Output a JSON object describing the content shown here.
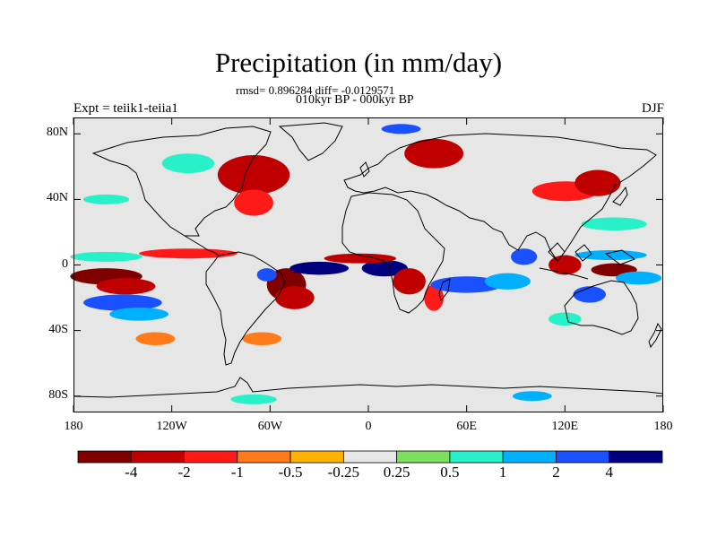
{
  "title": "Precipitation (in mm/day)",
  "stats": "rmsd= 0.896284 diff= -0.0129571",
  "period": "010kyr BP - 000kyr BP",
  "experiment": "Expt = teiik1-teiia1",
  "season": "DJF",
  "map": {
    "projection": "cylindrical-equidistant",
    "lon_range": [
      -180,
      180
    ],
    "lat_range": [
      -90,
      90
    ],
    "background_color": "#e6e6e6",
    "coastline_color": "#000000",
    "lat_ticks": [
      {
        "label": "80N",
        "lat": 80
      },
      {
        "label": "40N",
        "lat": 40
      },
      {
        "label": "0",
        "lat": 0
      },
      {
        "label": "40S",
        "lat": -40
      },
      {
        "label": "80S",
        "lat": -80
      }
    ],
    "lon_ticks": [
      {
        "label": "180",
        "lon": -180
      },
      {
        "label": "120W",
        "lon": -120
      },
      {
        "label": "60W",
        "lon": -60
      },
      {
        "label": "0",
        "lon": 0
      },
      {
        "label": "60E",
        "lon": 60
      },
      {
        "label": "120E",
        "lon": 120
      },
      {
        "label": "180",
        "lon": 180
      }
    ],
    "anomaly_field": [
      {
        "lon": -160,
        "lat": -7,
        "rx": 22,
        "ry": 5,
        "level": -4
      },
      {
        "lon": -148,
        "lat": -13,
        "rx": 18,
        "ry": 5,
        "level": -2
      },
      {
        "lon": -150,
        "lat": -23,
        "rx": 24,
        "ry": 5,
        "level": 2
      },
      {
        "lon": -140,
        "lat": -30,
        "rx": 18,
        "ry": 4,
        "level": 1
      },
      {
        "lon": -160,
        "lat": 5,
        "rx": 22,
        "ry": 3,
        "level": 0.5
      },
      {
        "lon": -110,
        "lat": 7,
        "rx": 30,
        "ry": 3,
        "level": -1
      },
      {
        "lon": -50,
        "lat": -12,
        "rx": 12,
        "ry": 10,
        "level": -4
      },
      {
        "lon": -45,
        "lat": -20,
        "rx": 12,
        "ry": 7,
        "level": -2
      },
      {
        "lon": -62,
        "lat": -6,
        "rx": 6,
        "ry": 4,
        "level": 2
      },
      {
        "lon": -30,
        "lat": -2,
        "rx": 18,
        "ry": 4,
        "level": 4
      },
      {
        "lon": 10,
        "lat": -2,
        "rx": 14,
        "ry": 5,
        "level": 4
      },
      {
        "lon": -5,
        "lat": 4,
        "rx": 22,
        "ry": 3,
        "level": -2
      },
      {
        "lon": 25,
        "lat": -10,
        "rx": 10,
        "ry": 8,
        "level": -2
      },
      {
        "lon": 40,
        "lat": -20,
        "rx": 6,
        "ry": 8,
        "level": -1
      },
      {
        "lon": 60,
        "lat": -12,
        "rx": 22,
        "ry": 5,
        "level": 2
      },
      {
        "lon": 85,
        "lat": -10,
        "rx": 14,
        "ry": 5,
        "level": 1
      },
      {
        "lon": 95,
        "lat": 5,
        "rx": 8,
        "ry": 5,
        "level": 2
      },
      {
        "lon": 120,
        "lat": 0,
        "rx": 10,
        "ry": 6,
        "level": -2
      },
      {
        "lon": 150,
        "lat": -3,
        "rx": 14,
        "ry": 4,
        "level": -4
      },
      {
        "lon": 148,
        "lat": 6,
        "rx": 22,
        "ry": 3,
        "level": 1
      },
      {
        "lon": 135,
        "lat": -18,
        "rx": 10,
        "ry": 5,
        "level": 2
      },
      {
        "lon": 165,
        "lat": -8,
        "rx": 14,
        "ry": 4,
        "level": 1
      },
      {
        "lon": -70,
        "lat": 55,
        "rx": 22,
        "ry": 12,
        "level": -2
      },
      {
        "lon": -70,
        "lat": 38,
        "rx": 12,
        "ry": 8,
        "level": -1
      },
      {
        "lon": -110,
        "lat": 62,
        "rx": 16,
        "ry": 6,
        "level": 0.5
      },
      {
        "lon": 40,
        "lat": 68,
        "rx": 18,
        "ry": 9,
        "level": -2
      },
      {
        "lon": 20,
        "lat": 83,
        "rx": 12,
        "ry": 3,
        "level": 2
      },
      {
        "lon": 120,
        "lat": 45,
        "rx": 20,
        "ry": 6,
        "level": -1
      },
      {
        "lon": 140,
        "lat": 50,
        "rx": 14,
        "ry": 8,
        "level": -2
      },
      {
        "lon": 150,
        "lat": 25,
        "rx": 20,
        "ry": 4,
        "level": 0.5
      },
      {
        "lon": -160,
        "lat": 40,
        "rx": 14,
        "ry": 3,
        "level": 0.5
      },
      {
        "lon": -65,
        "lat": -45,
        "rx": 12,
        "ry": 4,
        "level": -0.5
      },
      {
        "lon": -130,
        "lat": -45,
        "rx": 12,
        "ry": 4,
        "level": -0.5
      },
      {
        "lon": -70,
        "lat": -82,
        "rx": 14,
        "ry": 3,
        "level": 0.5
      },
      {
        "lon": 100,
        "lat": -80,
        "rx": 12,
        "ry": 3,
        "level": 1
      },
      {
        "lon": 120,
        "lat": -33,
        "rx": 10,
        "ry": 4,
        "level": 0.5
      }
    ]
  },
  "colorbar": {
    "colors": [
      "#800000",
      "#c00000",
      "#ff1a1a",
      "#ff7a1a",
      "#ffb300",
      "#e6e6e6",
      "#7dde60",
      "#28f0c8",
      "#00b0ff",
      "#1a50ff",
      "#00007f"
    ],
    "labels": [
      "-4",
      "-2",
      "-1",
      "-0.5",
      "-0.25",
      "0.25",
      "0.5",
      "1",
      "2",
      "4"
    ],
    "levels": [
      -4,
      -2,
      -1,
      -0.5,
      -0.25,
      0.25,
      0.5,
      1,
      2,
      4
    ]
  }
}
